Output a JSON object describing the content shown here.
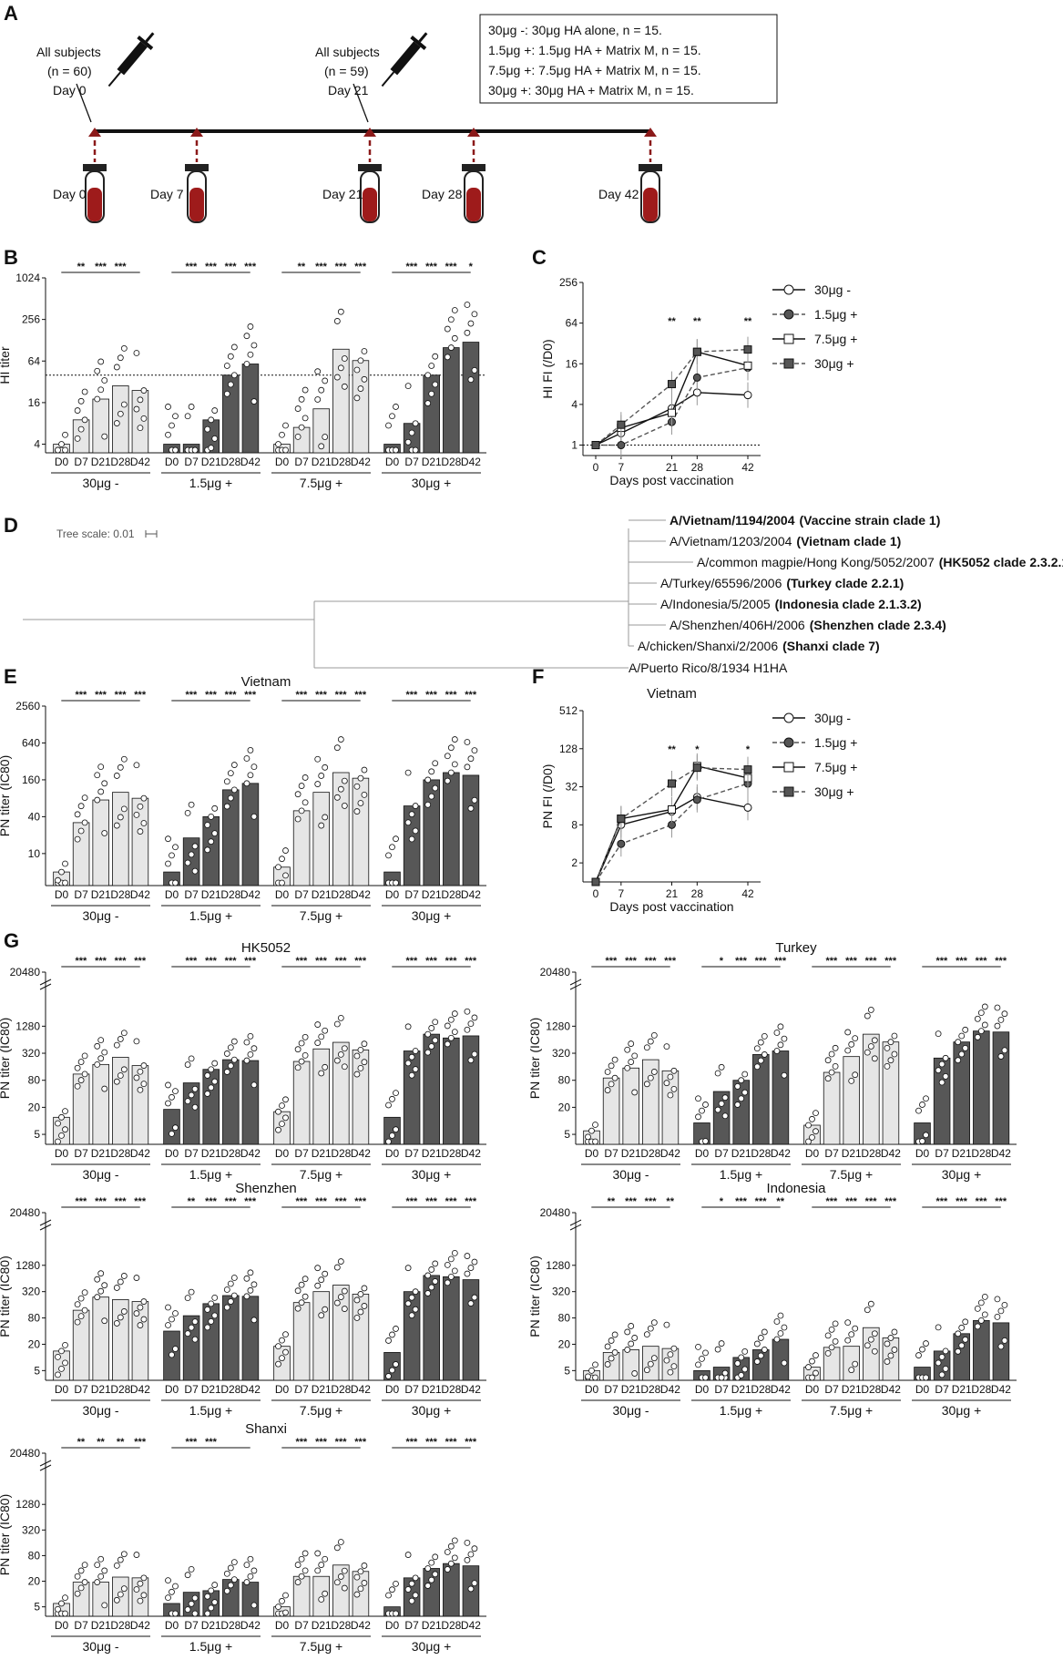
{
  "panel_labels": [
    "A",
    "B",
    "C",
    "D",
    "E",
    "F",
    "G"
  ],
  "timeline": {
    "top_texts": [
      "All subjects",
      "(n = 60)",
      "Day 0",
      "All subjects",
      "(n = 59)",
      "Day 21"
    ],
    "days": [
      "Day 0",
      "Day 7",
      "Day 21",
      "Day 28",
      "Day 42"
    ],
    "legend": [
      "30μg -: 30μg HA alone, n = 15.",
      "1.5μg +: 1.5μg HA + Matrix M, n = 15.",
      "7.5μg +: 7.5μg HA + Matrix M, n = 15.",
      "30μg +: 30μg HA + Matrix M, n = 15."
    ]
  },
  "groups": [
    "30μg -",
    "1.5μg +",
    "7.5μg +",
    "30μg +"
  ],
  "timepoints": [
    "D0",
    "D7",
    "D21",
    "D28",
    "D42"
  ],
  "colors": {
    "light_bar": "#e6e6e6",
    "dark_bar": "#575757",
    "line": "#111111",
    "dashed": "#555555"
  },
  "tree": {
    "scale_label": "Tree scale: 0.01",
    "leaves": [
      {
        "strain": "A/Vietnam/1194/2004",
        "clade": "(Vaccine strain clade 1)",
        "bold_strain": true
      },
      {
        "strain": "A/Vietnam/1203/2004",
        "clade": "(Vietnam clade 1)",
        "bold_strain": false
      },
      {
        "strain": "A/common magpie/Hong Kong/5052/2007",
        "clade": "(HK5052 clade 2.3.2.1)",
        "bold_strain": false
      },
      {
        "strain": "A/Turkey/65596/2006",
        "clade": "(Turkey clade 2.2.1)",
        "bold_strain": false
      },
      {
        "strain": "A/Indonesia/5/2005",
        "clade": "(Indonesia clade 2.1.3.2)",
        "bold_strain": false
      },
      {
        "strain": "A/Shenzhen/406H/2006",
        "clade": "(Shenzhen clade 2.3.4)",
        "bold_strain": false
      },
      {
        "strain": "A/chicken/Shanxi/2/2006",
        "clade": "(Shanxi clade 7)",
        "bold_strain": false
      },
      {
        "strain": "A/Puerto Rico/8/1934 H1HA",
        "clade": "",
        "bold_strain": false
      }
    ]
  },
  "chart_data": [
    {
      "id": "B",
      "type": "bar",
      "title": "",
      "ylabel": "HI titer",
      "yticks": [
        "4",
        "16",
        "64",
        "256",
        "1024"
      ],
      "ylim_log2": [
        2,
        10
      ],
      "threshold": 40,
      "groups": [
        "30μg -",
        "1.5μg +",
        "7.5μg +",
        "30μg +"
      ],
      "categories": [
        "D0",
        "D7",
        "D21",
        "D28",
        "D42"
      ],
      "values": [
        [
          4,
          9,
          18,
          28,
          24
        ],
        [
          4,
          4,
          9,
          40,
          58
        ],
        [
          4,
          7,
          13,
          95,
          65
        ],
        [
          4,
          8,
          40,
          100,
          120
        ]
      ],
      "sig": [
        [
          "**",
          "***",
          "***"
        ],
        [
          "***",
          "***",
          "***",
          "***"
        ],
        [
          "**",
          "***",
          "***",
          "***",
          "***",
          "***"
        ],
        [
          "***",
          "***",
          "***",
          "*",
          "*"
        ]
      ]
    },
    {
      "id": "C",
      "type": "line",
      "xlabel": "Days post vaccination",
      "ylabel": "HI FI (/D0)",
      "x": [
        0,
        7,
        21,
        28,
        42
      ],
      "xticks": [
        "0",
        "7",
        "21",
        "28",
        "42"
      ],
      "yticks": [
        "1",
        "4",
        "16",
        "64",
        "256"
      ],
      "series": [
        {
          "name": "30μg -",
          "style": "solid",
          "marker": "circle-open",
          "values": [
            1,
            1.5,
            3.5,
            6,
            5.5
          ]
        },
        {
          "name": "1.5μg +",
          "style": "dashed",
          "marker": "circle-filled",
          "values": [
            1,
            1,
            2.2,
            10,
            14
          ]
        },
        {
          "name": "7.5μg +",
          "style": "solid",
          "marker": "square-open",
          "values": [
            1,
            1.8,
            3,
            24,
            15
          ]
        },
        {
          "name": "30μg +",
          "style": "dashed",
          "marker": "square-filled",
          "values": [
            1,
            2,
            8,
            24,
            26
          ]
        }
      ],
      "sig": [
        "**",
        "**",
        "**"
      ]
    },
    {
      "id": "E",
      "type": "bar",
      "title": "Vietnam",
      "ylabel": "PN titer (IC80)",
      "yticks": [
        "10",
        "40",
        "160",
        "640",
        "2560"
      ],
      "groups": [
        "30μg -",
        "1.5μg +",
        "7.5μg +",
        "30μg +"
      ],
      "categories": [
        "D0",
        "D7",
        "D21",
        "D28",
        "D42"
      ],
      "values": [
        [
          5,
          32,
          75,
          100,
          80
        ],
        [
          5,
          18,
          40,
          110,
          140
        ],
        [
          6,
          50,
          100,
          210,
          170
        ],
        [
          5,
          60,
          160,
          210,
          190
        ]
      ],
      "sig": [
        [
          "***",
          "***",
          "***",
          "***"
        ],
        [
          "***",
          "***",
          "***",
          "***",
          "**",
          "***"
        ],
        [
          "***",
          "***",
          "***",
          "***",
          "*"
        ],
        [
          "***",
          "***",
          "***",
          "***"
        ]
      ]
    },
    {
      "id": "F",
      "type": "line",
      "title": "Vietnam",
      "xlabel": "Days post vaccination",
      "ylabel": "PN FI (/D0)",
      "x": [
        0,
        7,
        21,
        28,
        42
      ],
      "xticks": [
        "0",
        "7",
        "21",
        "28",
        "42"
      ],
      "yticks": [
        "2",
        "8",
        "32",
        "128",
        "512"
      ],
      "series": [
        {
          "name": "30μg -",
          "style": "solid",
          "marker": "circle-open",
          "values": [
            1,
            8,
            13,
            22,
            15
          ]
        },
        {
          "name": "1.5μg +",
          "style": "dashed",
          "marker": "circle-filled",
          "values": [
            1,
            4,
            8,
            20,
            36
          ]
        },
        {
          "name": "7.5μg +",
          "style": "solid",
          "marker": "square-open",
          "values": [
            1,
            10,
            14,
            68,
            44
          ]
        },
        {
          "name": "30μg +",
          "style": "dashed",
          "marker": "square-filled",
          "values": [
            1,
            10,
            36,
            64,
            60
          ]
        }
      ],
      "sig": [
        "**",
        "*",
        "*"
      ]
    },
    {
      "id": "G-HK5052",
      "type": "bar",
      "title": "HK5052",
      "ylabel": "PN titer (IC80)",
      "values": [
        [
          12,
          110,
          180,
          260,
          170
        ],
        [
          18,
          70,
          140,
          230,
          220
        ],
        [
          16,
          210,
          400,
          560,
          380
        ],
        [
          12,
          360,
          850,
          700,
          780
        ]
      ]
    },
    {
      "id": "G-Turkey",
      "type": "bar",
      "title": "Turkey",
      "ylabel": "PN titer (IC80)",
      "values": [
        [
          6,
          90,
          150,
          230,
          130
        ],
        [
          9,
          45,
          80,
          300,
          360
        ],
        [
          8,
          120,
          270,
          850,
          570
        ],
        [
          9,
          250,
          570,
          1000,
          950
        ]
      ]
    },
    {
      "id": "G-Shenzhen",
      "type": "bar",
      "title": "Shenzhen",
      "ylabel": "PN titer (IC80)",
      "values": [
        [
          14,
          120,
          240,
          210,
          190
        ],
        [
          40,
          90,
          170,
          260,
          250
        ],
        [
          18,
          180,
          320,
          450,
          280
        ],
        [
          13,
          320,
          750,
          700,
          600
        ]
      ]
    },
    {
      "id": "G-Indonesia",
      "type": "bar",
      "title": "Indonesia",
      "ylabel": "PN titer (IC80)",
      "values": [
        [
          5,
          13,
          15,
          18,
          16
        ],
        [
          5,
          6,
          10,
          15,
          26
        ],
        [
          6,
          17,
          18,
          48,
          28
        ],
        [
          6,
          14,
          35,
          70,
          62
        ]
      ]
    },
    {
      "id": "G-Shanxi",
      "type": "bar",
      "title": "Shanxi",
      "ylabel": "PN titer (IC80)",
      "values": [
        [
          6,
          19,
          19,
          25,
          24
        ],
        [
          6,
          11,
          12,
          22,
          19
        ],
        [
          5,
          26,
          26,
          48,
          34
        ],
        [
          5,
          24,
          40,
          52,
          46
        ]
      ]
    }
  ],
  "g_yticks_a": [
    "20480",
    "1280",
    "320",
    "80",
    "20",
    "5"
  ],
  "g_yticks_b": [
    "20480",
    "1280",
    "320",
    "80",
    "20",
    "5"
  ]
}
